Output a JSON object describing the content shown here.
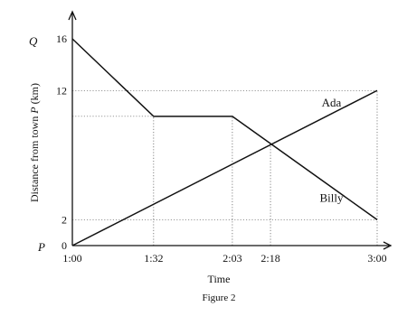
{
  "chart_data": {
    "type": "line",
    "caption": "Figure 2",
    "xlabel": "Time",
    "ylabel_prefix": "Distance from town ",
    "ylabel_point": "P",
    "ylabel_unit": " (km)",
    "origin_point_label": "P",
    "top_point_label": "Q",
    "x_ticks": [
      {
        "t": 0,
        "label": "1:00"
      },
      {
        "t": 32,
        "label": "1:32"
      },
      {
        "t": 63,
        "label": "2:03"
      },
      {
        "t": 78,
        "label": "2:18"
      },
      {
        "t": 120,
        "label": "3:00"
      }
    ],
    "y_ticks": [
      {
        "v": 0,
        "label": "0"
      },
      {
        "v": 2,
        "label": "2"
      },
      {
        "v": 12,
        "label": "12"
      },
      {
        "v": 16,
        "label": "16"
      }
    ],
    "xlim": [
      "1:00",
      "3:00"
    ],
    "ylim": [
      0,
      16
    ],
    "grid": "dotted guide lines",
    "series": [
      {
        "name": "Ada",
        "x": [
          "1:00",
          "3:00"
        ],
        "y": [
          0,
          12
        ]
      },
      {
        "name": "Billy",
        "x": [
          "1:00",
          "1:32",
          "2:03",
          "3:00"
        ],
        "y": [
          16,
          10,
          10,
          2
        ]
      }
    ]
  }
}
